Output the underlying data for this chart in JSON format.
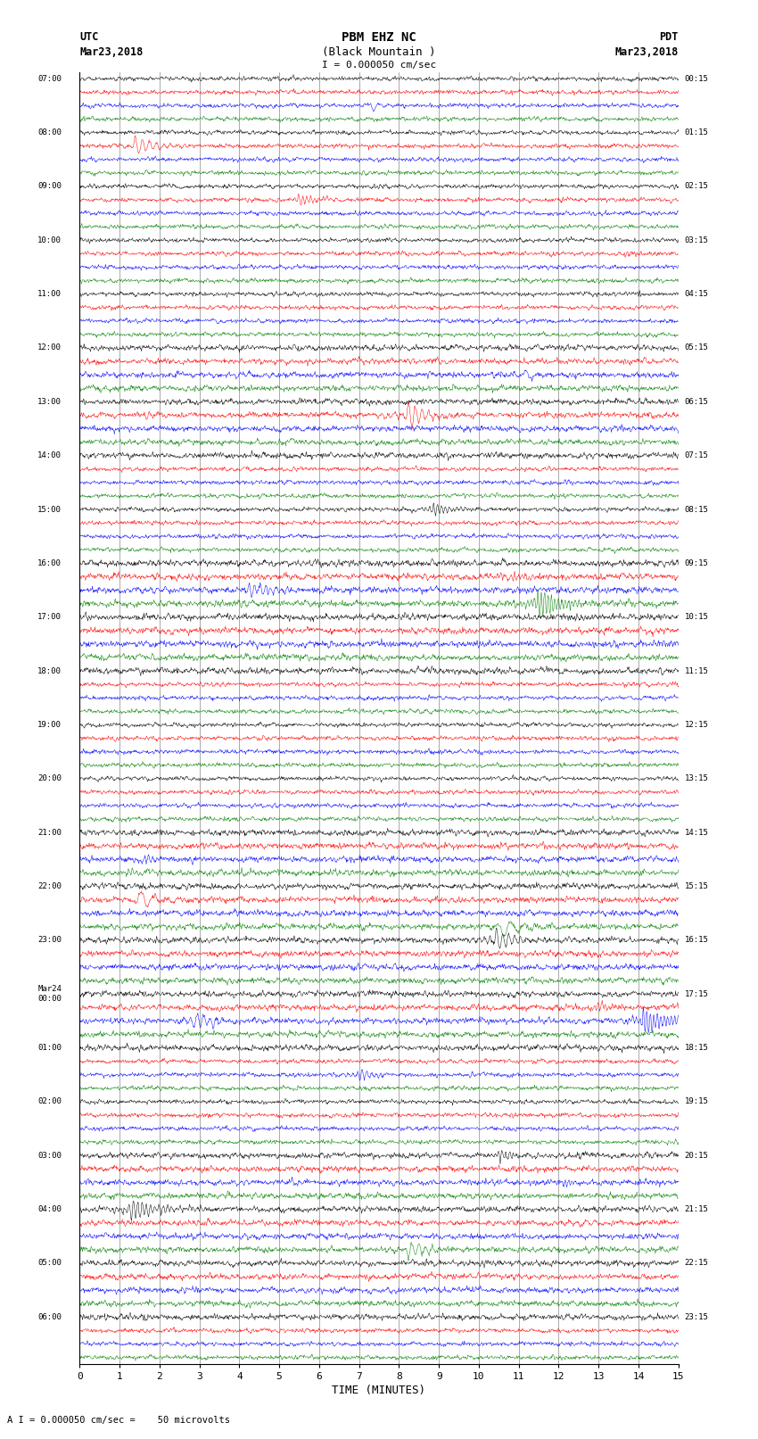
{
  "title_line1": "PBM EHZ NC",
  "title_line2": "(Black Mountain )",
  "scale_label": "I = 0.000050 cm/sec",
  "utc_label_line1": "UTC",
  "utc_label_line2": "Mar23,2018",
  "pdt_label_line1": "PDT",
  "pdt_label_line2": "Mar23,2018",
  "xlabel": "TIME (MINUTES)",
  "bottom_label": "A I = 0.000050 cm/sec =    50 microvolts",
  "left_times": [
    "07:00",
    "",
    "",
    "",
    "08:00",
    "",
    "",
    "",
    "09:00",
    "",
    "",
    "",
    "10:00",
    "",
    "",
    "",
    "11:00",
    "",
    "",
    "",
    "12:00",
    "",
    "",
    "",
    "13:00",
    "",
    "",
    "",
    "14:00",
    "",
    "",
    "",
    "15:00",
    "",
    "",
    "",
    "16:00",
    "",
    "",
    "",
    "17:00",
    "",
    "",
    "",
    "18:00",
    "",
    "",
    "",
    "19:00",
    "",
    "",
    "",
    "20:00",
    "",
    "",
    "",
    "21:00",
    "",
    "",
    "",
    "22:00",
    "",
    "",
    "",
    "23:00",
    "",
    "",
    "",
    "Mar24",
    "00:00",
    "",
    "",
    "01:00",
    "",
    "",
    "",
    "02:00",
    "",
    "",
    "",
    "03:00",
    "",
    "",
    "",
    "04:00",
    "",
    "",
    "",
    "05:00",
    "",
    "",
    "",
    "06:00",
    "",
    "",
    ""
  ],
  "right_times": [
    "00:15",
    "",
    "",
    "",
    "01:15",
    "",
    "",
    "",
    "02:15",
    "",
    "",
    "",
    "03:15",
    "",
    "",
    "",
    "04:15",
    "",
    "",
    "",
    "05:15",
    "",
    "",
    "",
    "06:15",
    "",
    "",
    "",
    "07:15",
    "",
    "",
    "",
    "08:15",
    "",
    "",
    "",
    "09:15",
    "",
    "",
    "",
    "10:15",
    "",
    "",
    "",
    "11:15",
    "",
    "",
    "",
    "12:15",
    "",
    "",
    "",
    "13:15",
    "",
    "",
    "",
    "14:15",
    "",
    "",
    "",
    "15:15",
    "",
    "",
    "",
    "16:15",
    "",
    "",
    "",
    "17:15",
    "",
    "",
    "",
    "18:15",
    "",
    "",
    "",
    "19:15",
    "",
    "",
    "",
    "20:15",
    "",
    "",
    "",
    "21:15",
    "",
    "",
    "",
    "22:15",
    "",
    "",
    "",
    "23:15",
    "",
    "",
    ""
  ],
  "colors": [
    "black",
    "red",
    "blue",
    "green"
  ],
  "bg_color": "white",
  "grid_color": "#999999",
  "x_min": 0,
  "x_max": 15,
  "x_ticks": [
    0,
    1,
    2,
    3,
    4,
    5,
    6,
    7,
    8,
    9,
    10,
    11,
    12,
    13,
    14,
    15
  ]
}
